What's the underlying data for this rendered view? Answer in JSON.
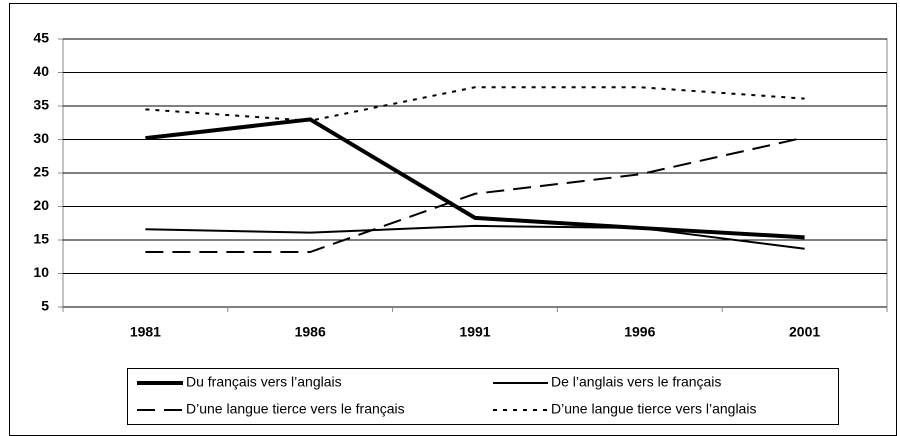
{
  "chart_data": {
    "type": "line",
    "categories": [
      "1981",
      "1986",
      "1991",
      "1996",
      "2001"
    ],
    "series": [
      {
        "name": "Du français vers l’anglais",
        "color": "#000000",
        "line_style": "solid",
        "line_width": 4,
        "values": [
          30.2,
          33,
          18.3,
          16.8,
          15.4
        ]
      },
      {
        "name": "De l’anglais vers le français",
        "color": "#000000",
        "line_style": "solid",
        "line_width": 2,
        "values": [
          16.6,
          16.1,
          17.1,
          16.8,
          13.7
        ]
      },
      {
        "name": "D’une langue tierce vers le français",
        "color": "#000000",
        "line_style": "dashed",
        "line_width": 2,
        "values": [
          13.2,
          13.2,
          21.9,
          24.8,
          30.3
        ]
      },
      {
        "name": "D’une langue tierce vers l’anglais",
        "color": "#000000",
        "line_style": "dotted",
        "line_width": 2,
        "values": [
          34.5,
          32.8,
          37.8,
          37.8,
          36.1
        ]
      }
    ],
    "ylim": [
      5,
      45
    ],
    "yticks": [
      5,
      10,
      15,
      20,
      25,
      30,
      35,
      40,
      45
    ],
    "grid": true,
    "legend": "bottom"
  }
}
